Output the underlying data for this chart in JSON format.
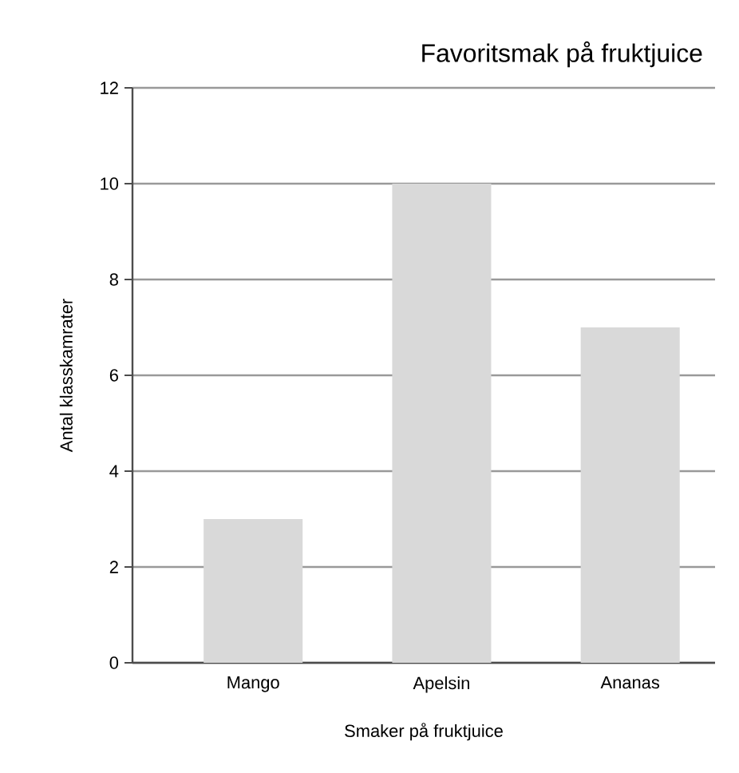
{
  "chart_data": {
    "type": "bar",
    "title": "Favoritsmak på fruktjuice",
    "xlabel": "Smaker på fruktjuice",
    "ylabel": "Antal klasskamrater",
    "categories": [
      "Mango",
      "Apelsin",
      "Ananas"
    ],
    "values": [
      3,
      10,
      7
    ],
    "color": "#d9d9d9",
    "ylim": [
      0,
      12
    ],
    "yticks": [
      0,
      2,
      4,
      6,
      8,
      10,
      12
    ],
    "grid": "y"
  }
}
